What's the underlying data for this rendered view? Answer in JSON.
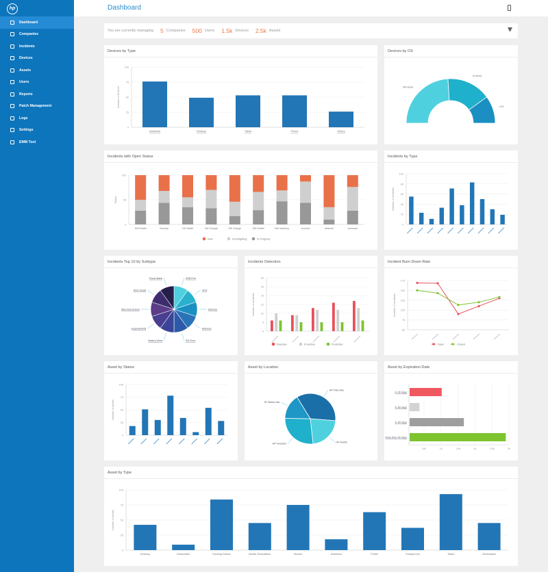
{
  "brand": {
    "logo_text": "hp"
  },
  "sidebar": {
    "items": [
      {
        "label": "Dashboard",
        "icon": "dashboard-icon",
        "active": true
      },
      {
        "label": "Companies",
        "icon": "companies-icon"
      },
      {
        "label": "Incidents",
        "icon": "incidents-icon"
      },
      {
        "label": "Devices",
        "icon": "devices-icon"
      },
      {
        "label": "Assets",
        "icon": "assets-icon"
      },
      {
        "label": "Users",
        "icon": "users-icon"
      },
      {
        "label": "Reports",
        "icon": "reports-icon"
      },
      {
        "label": "Patch Management",
        "icon": "patch-icon"
      },
      {
        "label": "Logs",
        "icon": "logs-icon"
      },
      {
        "label": "Settings",
        "icon": "settings-icon"
      },
      {
        "label": "EMM Tool",
        "icon": "emm-icon"
      }
    ]
  },
  "header": {
    "title": "Dashboard"
  },
  "summary": {
    "prefix": "You are currently managing",
    "companies_count": "5",
    "companies_label": "Companies",
    "users_count": "500",
    "users_label": "Users",
    "devices_count": "1.5k",
    "devices_label": "Devices",
    "assets_count": "2.5k",
    "assets_label": "Assets"
  },
  "colors": {
    "blue": "#2276b6",
    "orange": "#e8714a",
    "light_gray": "#cfcfcf",
    "mid_gray": "#989898",
    "red": "#e8505b",
    "green": "#7dc42f",
    "teal": "#25b3cd"
  },
  "cards": {
    "devices_by_type": "Devices by Type",
    "devices_by_os": "Devices by OS",
    "incidents_open": "Incidents with Open Status",
    "incidents_by_type": "Incidents by Type",
    "incidents_subtype": "Incidents Top 10 by Subtype",
    "incidents_detection": "Incidents Detection",
    "burn_down": "Incident Burn Down Rate",
    "asset_status": "Asset by Status",
    "asset_location": "Asset by Location",
    "asset_expiration": "Asset by Expiration Date",
    "asset_type": "Asset by Type"
  },
  "chart_data": [
    {
      "id": "devices_by_type",
      "type": "bar",
      "ylabel": "Number of Devices",
      "yticks": [
        "100",
        "75",
        "50",
        "25",
        "0"
      ],
      "ylim": [
        0,
        100
      ],
      "categories": [
        "Notebook",
        "Desktop",
        "Tablet",
        "Phone",
        "Others"
      ],
      "values": [
        76,
        49,
        53,
        53,
        26
      ]
    },
    {
      "id": "devices_by_os",
      "type": "pie",
      "categories": [
        "Windows",
        "Android",
        "iOS"
      ],
      "values": [
        48,
        32,
        20
      ]
    },
    {
      "id": "incidents_open",
      "type": "bar",
      "stacked": true,
      "ylabel": "Status",
      "yticks": [
        "100",
        "50",
        "0"
      ],
      "ylim": [
        0,
        100
      ],
      "categories": [
        "HW Health",
        "Security",
        "OS Health",
        "HW Change",
        "SW Change",
        "SW Health",
        "HW Inventory",
        "Account",
        "Network",
        "Unknown"
      ],
      "series": [
        {
          "name": "In Progress",
          "values": [
            28,
            44,
            35,
            33,
            17,
            29,
            47,
            44,
            10,
            28
          ]
        },
        {
          "name": "Investigating",
          "values": [
            22,
            24,
            20,
            37,
            29,
            37,
            22,
            43,
            25,
            48
          ]
        },
        {
          "name": "New",
          "values": [
            50,
            32,
            45,
            30,
            54,
            34,
            31,
            13,
            65,
            24
          ]
        }
      ],
      "legend": [
        "New",
        "Investigating",
        "In Progress"
      ]
    },
    {
      "id": "incidents_by_type",
      "type": "bar",
      "ylabel": "Number of Incidents",
      "yticks": [
        "100",
        "80",
        "60",
        "40",
        "20",
        "0"
      ],
      "ylim": [
        0,
        100
      ],
      "values": [
        55,
        23,
        11,
        33,
        71,
        38,
        83,
        50,
        30,
        19
      ]
    },
    {
      "id": "incidents_subtype",
      "type": "pie",
      "labels": [
        "USB Port",
        "CPU",
        "Memory",
        "Antivirus",
        "SW Error",
        "Battery Wear",
        "Keyboard/KB",
        "Blue Bolt Screen",
        "HDD Smart",
        "Power Bank"
      ],
      "values": [
        10,
        10,
        10,
        10,
        10,
        10,
        10,
        10,
        10,
        10
      ],
      "colors": [
        "#4fd0df",
        "#2ab1cd",
        "#1b8fc1",
        "#2b73b8",
        "#2d5aa8",
        "#3a4599",
        "#493f8f",
        "#5b3c88",
        "#3e2c6e",
        "#261f4b"
      ]
    },
    {
      "id": "incidents_detection",
      "type": "bar",
      "ylabel": "Number of Incidents",
      "yticks": [
        "30",
        "25",
        "20",
        "15",
        "10",
        "5",
        "0"
      ],
      "ylim": [
        0,
        30
      ],
      "series": [
        {
          "name": "Reactive",
          "values": [
            6,
            9,
            13,
            16,
            17
          ]
        },
        {
          "name": "Proactive",
          "values": [
            10,
            9,
            12,
            12,
            13
          ]
        },
        {
          "name": "Predictive",
          "values": [
            6,
            5,
            5,
            5,
            6
          ]
        }
      ],
      "legend": [
        "Reactive",
        "Proactive",
        "Predictive"
      ]
    },
    {
      "id": "burn_down",
      "type": "line",
      "ylabel": "Number of Incidents",
      "yticks": [
        "175",
        "150",
        "125",
        "100",
        "75",
        "50"
      ],
      "ylim": [
        50,
        175
      ],
      "series": [
        {
          "name": "Open",
          "values": [
            169,
            168,
            90,
            110,
            130
          ]
        },
        {
          "name": "Closed",
          "values": [
            150,
            143,
            113,
            120,
            133
          ]
        }
      ],
      "legend": [
        "Open",
        "Closed"
      ]
    },
    {
      "id": "asset_status",
      "type": "bar",
      "ylabel": "Number of Assets",
      "yticks": [
        "100",
        "75",
        "50",
        "25",
        "0"
      ],
      "ylim": [
        0,
        100
      ],
      "values": [
        18,
        51,
        30,
        78,
        34,
        6,
        54,
        28
      ]
    },
    {
      "id": "asset_location",
      "type": "pie",
      "labels": [
        "HP Palo Alto",
        "HP Austin",
        "HP Houston",
        "HP Boise Idie"
      ],
      "values": [
        35,
        22,
        27,
        16
      ]
    },
    {
      "id": "asset_expiration",
      "type": "bar",
      "horizontal": true,
      "categories": [
        "In 30 days",
        "In 60 days",
        "In 90 days",
        "More than 90 days"
      ],
      "values": [
        1.3,
        0.4,
        2.2,
        3.9
      ],
      "colors": [
        "#f05860",
        "#d3d3d3",
        "#9e9e9e",
        "#7dc42f"
      ],
      "xticks": [
        "100",
        "1k",
        "1.5k",
        "2k",
        "2.5k",
        "3k"
      ]
    },
    {
      "id": "asset_type",
      "type": "bar",
      "ylabel": "Number of Assets",
      "yticks": [
        "100",
        "75",
        "50",
        "25",
        "0"
      ],
      "ylim": [
        0,
        100
      ],
      "categories": [
        "Desktop",
        "Detachable",
        "Docking Station",
        "Mobile Workstation",
        "Monitor",
        "Notebook",
        "Printer",
        "Smartphone",
        "Tablet",
        "Workstation"
      ],
      "values": [
        42,
        9,
        84,
        45,
        75,
        18,
        63,
        37,
        93,
        45
      ]
    }
  ]
}
